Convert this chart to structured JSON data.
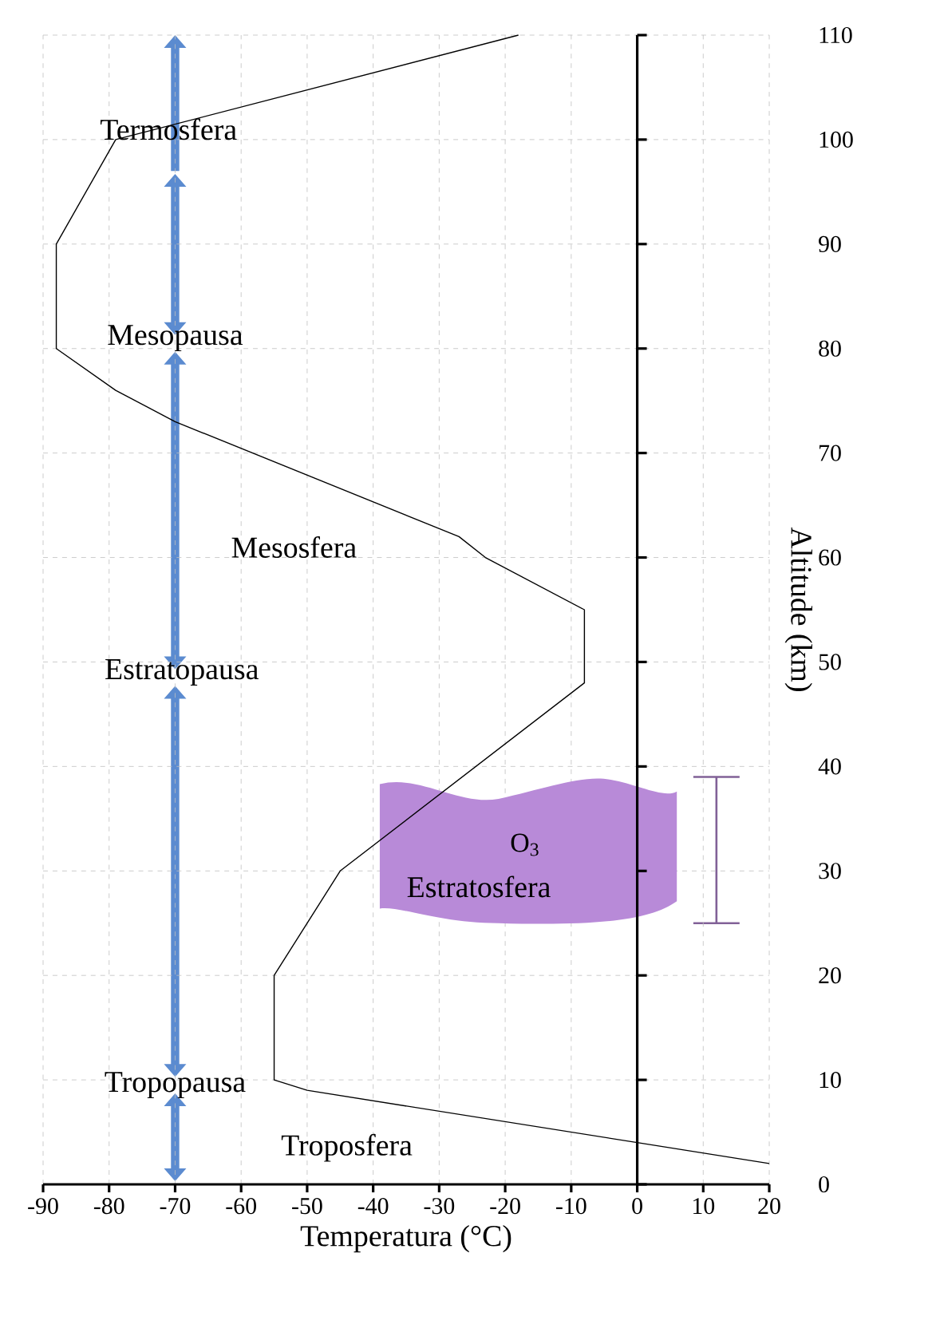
{
  "chart_data": {
    "type": "line",
    "xlabel": "Temperatura (°C)",
    "ylabel": "Altitude (km)",
    "xlim": [
      -90,
      20
    ],
    "xticks": [
      -90,
      -80,
      -70,
      -60,
      -50,
      -40,
      -30,
      -20,
      -10,
      0,
      10,
      20
    ],
    "ylim": [
      0,
      110
    ],
    "yticks": [
      0,
      10,
      20,
      30,
      40,
      50,
      60,
      70,
      80,
      90,
      100,
      110
    ],
    "grid": true,
    "marker": "none",
    "line_style": "solid",
    "series": [
      {
        "color": "#000000",
        "x": [
          20,
          0,
          -50,
          -55,
          -55,
          -45,
          -8,
          -8,
          -23,
          -27,
          -70,
          -79,
          -88,
          -88,
          -79,
          -18
        ],
        "values": [
          2,
          4,
          9,
          10,
          20,
          30,
          48,
          55,
          60,
          62,
          73,
          76,
          80,
          90,
          100,
          110
        ]
      }
    ],
    "bands": [
      {
        "axis": "y",
        "from": 25,
        "to": 39,
        "label": "O$_{3}$",
        "color": "#b88ad8"
      }
    ],
    "annotations": [
      "Termosfera",
      "Mesopausa",
      "Mesosfera",
      "Estratopausa",
      "Estratosfera",
      "Tropopausa",
      "Troposfera"
    ]
  }
}
